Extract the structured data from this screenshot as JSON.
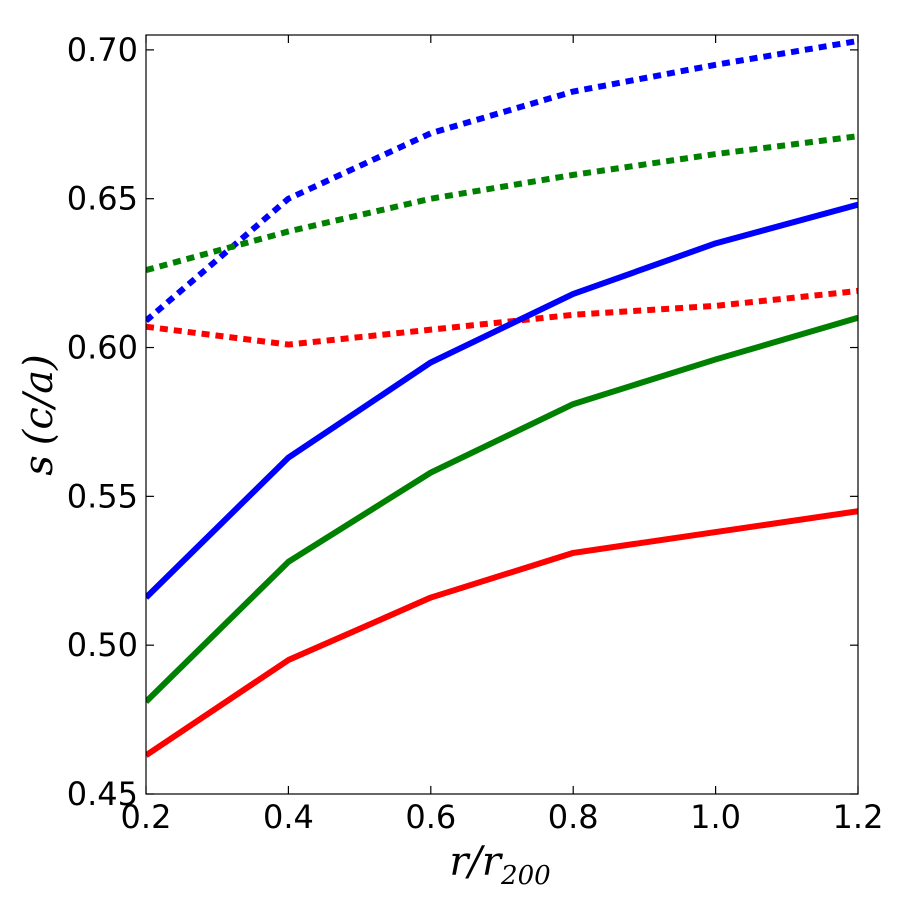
{
  "chart_data": {
    "type": "line",
    "xlabel": "r/r",
    "xlabel_sub": "200",
    "ylabel_var": "s",
    "ylabel_rest": "(c/a)",
    "xlim": [
      0.2,
      1.2
    ],
    "ylim": [
      0.45,
      0.705
    ],
    "xticks": [
      0.2,
      0.4,
      0.6,
      0.8,
      1.0,
      1.2
    ],
    "xtick_labels": [
      "0.2",
      "0.4",
      "0.6",
      "0.8",
      "1.0",
      "1.2"
    ],
    "yticks": [
      0.45,
      0.5,
      0.55,
      0.6,
      0.65,
      0.7
    ],
    "ytick_labels": [
      "0.45",
      "0.50",
      "0.55",
      "0.60",
      "0.65",
      "0.70"
    ],
    "grid": false,
    "x": [
      0.2,
      0.4,
      0.6,
      0.8,
      1.0,
      1.2
    ],
    "series": [
      {
        "color": "#0000ff",
        "style": "dotted",
        "values": [
          0.609,
          0.65,
          0.672,
          0.686,
          0.695,
          0.703
        ]
      },
      {
        "color": "#008000",
        "style": "dotted",
        "values": [
          0.626,
          0.639,
          0.65,
          0.658,
          0.665,
          0.671
        ]
      },
      {
        "color": "#ff0000",
        "style": "dotted",
        "values": [
          0.607,
          0.601,
          0.606,
          0.611,
          0.614,
          0.619
        ]
      },
      {
        "color": "#0000ff",
        "style": "solid",
        "values": [
          0.516,
          0.563,
          0.595,
          0.618,
          0.635,
          0.648
        ]
      },
      {
        "color": "#008000",
        "style": "solid",
        "values": [
          0.481,
          0.528,
          0.558,
          0.581,
          0.596,
          0.61
        ]
      },
      {
        "color": "#ff0000",
        "style": "solid",
        "values": [
          0.463,
          0.495,
          0.516,
          0.531,
          0.538,
          0.545
        ]
      }
    ]
  }
}
